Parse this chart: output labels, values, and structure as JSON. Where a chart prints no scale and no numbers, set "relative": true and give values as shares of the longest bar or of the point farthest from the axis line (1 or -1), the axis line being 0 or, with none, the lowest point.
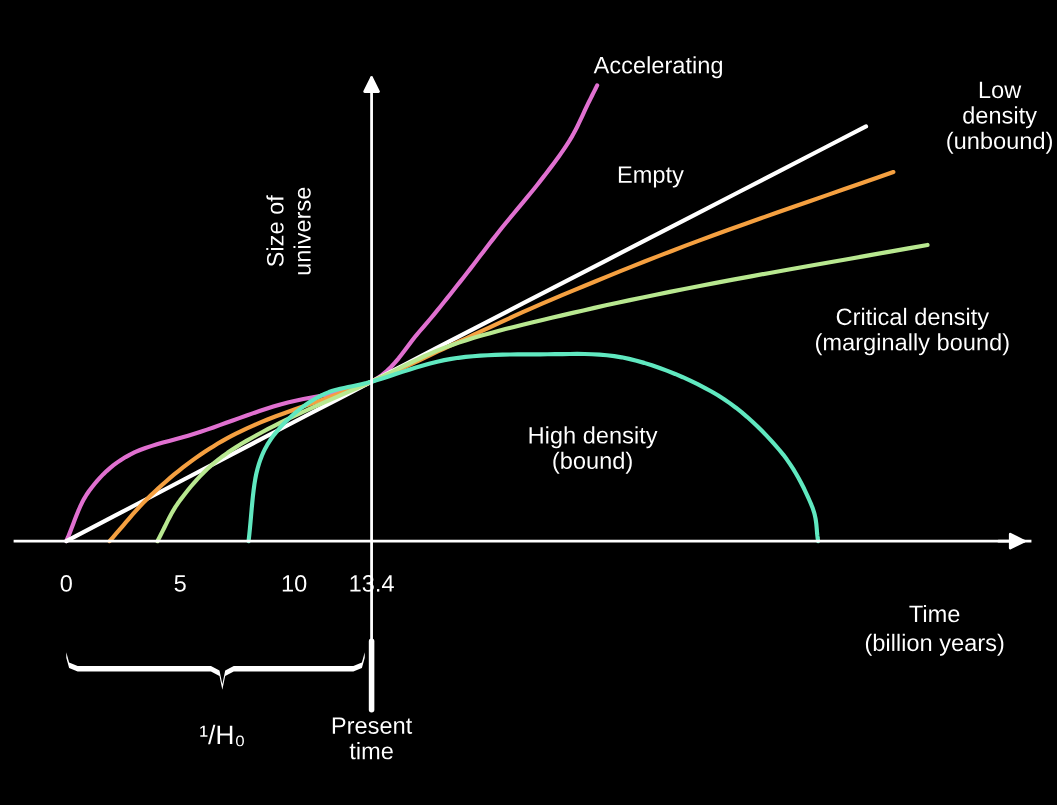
{
  "chart_data": {
    "type": "line",
    "relative": true,
    "legend": false,
    "grid": false,
    "marker": "none",
    "line_style": "solid",
    "ylabel": "Size of\nuniverse",
    "xlabel": "Time\n(billion years)",
    "xlim": [
      -2.25,
      42.3
    ],
    "xticks": [
      0,
      5,
      10,
      13.4
    ],
    "series": [
      {
        "name": "Accelerating",
        "color": "#e070d0",
        "x": [
          0,
          1.0,
          2.8,
          5.9,
          9.4,
          13.4,
          15.5,
          17.3,
          19.0,
          20.8,
          22.1,
          22.9,
          23.3
        ],
        "values": [
          0,
          0.11,
          0.19,
          0.24,
          0.3,
          0.35,
          0.46,
          0.57,
          0.68,
          0.79,
          0.88,
          0.96,
          1
        ]
      },
      {
        "name": "Empty",
        "color": "#ffffff",
        "x": [
          0,
          13.4,
          35.1
        ],
        "values": [
          0,
          0.35,
          0.91
        ]
      },
      {
        "name": "Low\ndensity\n(unbound)",
        "color": "#f5a040",
        "x": [
          1.9,
          3.7,
          5.9,
          8.5,
          13.4,
          16.9,
          21.3,
          27.8,
          36.3
        ],
        "values": [
          0,
          0.1,
          0.19,
          0.26,
          0.35,
          0.43,
          0.53,
          0.66,
          0.81
        ]
      },
      {
        "name": "Critical density\n(marginally bound)",
        "color": "#b8e890",
        "x": [
          4.0,
          5.0,
          6.7,
          9.4,
          13.4,
          16.9,
          21.3,
          27.8,
          37.8
        ],
        "values": [
          0,
          0.09,
          0.18,
          0.26,
          0.35,
          0.43,
          0.49,
          0.56,
          0.65
        ]
      },
      {
        "name": "High density\n(bound)",
        "color": "#60e8c0",
        "x": [
          8.0,
          8.4,
          9.4,
          11.2,
          13.4,
          16.9,
          20.8,
          24.7,
          28.6,
          31.3,
          32.7,
          33.0
        ],
        "values": [
          0,
          0.16,
          0.25,
          0.32,
          0.35,
          0.4,
          0.41,
          0.4,
          0.32,
          0.2,
          0.08,
          0
        ]
      }
    ],
    "ref_lines": [
      {
        "axis": "x",
        "value": 13.4,
        "label": "Present\ntime"
      }
    ],
    "annotations": [
      "¹/H₀"
    ]
  }
}
